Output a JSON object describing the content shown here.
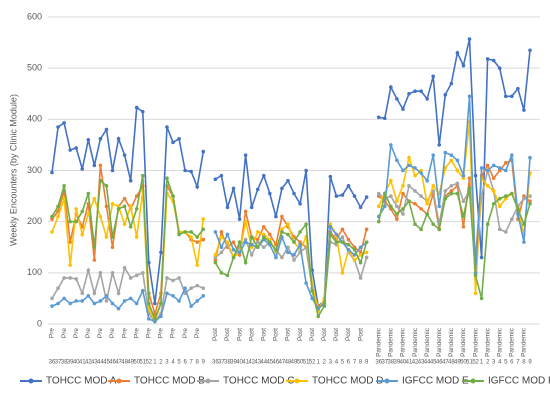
{
  "chart_data": {
    "type": "line",
    "y_label": "Weekly Encounters (by Clinic Module)",
    "categories": [
      36,
      37,
      38,
      39,
      40,
      41,
      42,
      43,
      44,
      45,
      46,
      47,
      48,
      49,
      50,
      51,
      52,
      1,
      2,
      3,
      4,
      5,
      6,
      7,
      8,
      9,
      null,
      36,
      37,
      38,
      39,
      40,
      41,
      42,
      43,
      44,
      45,
      46,
      47,
      48,
      49,
      50,
      51,
      52,
      1,
      2,
      3,
      4,
      5,
      6,
      7,
      8,
      9,
      null,
      36,
      37,
      38,
      39,
      40,
      41,
      42,
      43,
      44,
      45,
      46,
      47,
      48,
      49,
      50,
      51,
      52,
      1,
      2,
      3,
      4,
      5,
      6,
      7,
      8,
      9
    ],
    "category_periods": [
      "Pre",
      null,
      "Pre",
      null,
      "Pre",
      null,
      "Pre",
      null,
      "Pre",
      null,
      "Pre",
      null,
      "Pre",
      null,
      "Pre",
      null,
      "Pre",
      null,
      "Pre",
      null,
      "Pre",
      null,
      "Pre",
      null,
      "Pre",
      null,
      null,
      "Post",
      null,
      "Post",
      null,
      "Post",
      null,
      "Post",
      null,
      "Post",
      null,
      "Post",
      null,
      "Post",
      null,
      "Post",
      null,
      "Post",
      null,
      "Post",
      null,
      "Post",
      null,
      "Post",
      null,
      "Post",
      null,
      null,
      "Pandemic",
      null,
      "Pandemic",
      null,
      "Pandemic",
      null,
      "Pandemic",
      null,
      "Pandemic",
      null,
      "Pandemic",
      null,
      "Pandemic",
      null,
      "Pandemic",
      null,
      "Pandemic",
      null,
      "Pandemic",
      null,
      "Pandemic",
      null,
      "Pandemic",
      null,
      "Pandemic",
      null
    ],
    "ylim": [
      0,
      600
    ],
    "yticks": [
      0,
      100,
      200,
      300,
      400,
      500,
      600
    ],
    "grid": true,
    "legend": "bottom",
    "series": [
      {
        "name": "TOHCC MOD A",
        "color": "#4472c4",
        "values": [
          296,
          385,
          393,
          340,
          344,
          303,
          360,
          310,
          362,
          380,
          300,
          362,
          330,
          280,
          423,
          415,
          120,
          40,
          140,
          385,
          355,
          362,
          300,
          298,
          268,
          337,
          null,
          283,
          290,
          228,
          265,
          205,
          330,
          228,
          263,
          290,
          255,
          210,
          265,
          280,
          255,
          235,
          300,
          105,
          35,
          45,
          288,
          250,
          252,
          270,
          250,
          228,
          248,
          null,
          404,
          402,
          463,
          440,
          420,
          450,
          455,
          455,
          440,
          484,
          350,
          448,
          470,
          530,
          505,
          557,
          290,
          130,
          518,
          515,
          500,
          445,
          445,
          460,
          418,
          535
        ]
      },
      {
        "name": "TOHCC MOD B",
        "color": "#ed7d31",
        "values": [
          205,
          220,
          260,
          160,
          215,
          190,
          235,
          125,
          310,
          230,
          150,
          230,
          245,
          225,
          250,
          270,
          60,
          20,
          60,
          270,
          250,
          180,
          180,
          165,
          160,
          165,
          null,
          125,
          180,
          150,
          160,
          135,
          220,
          170,
          165,
          190,
          175,
          155,
          210,
          190,
          170,
          160,
          150,
          70,
          35,
          40,
          180,
          165,
          185,
          165,
          150,
          140,
          185,
          null,
          250,
          240,
          225,
          205,
          255,
          240,
          235,
          225,
          215,
          255,
          185,
          250,
          260,
          270,
          190,
          285,
          125,
          290,
          310,
          285,
          300,
          315,
          320,
          205,
          250,
          240
        ]
      },
      {
        "name": "TOHCC MOD C",
        "color": "#a5a5a5",
        "values": [
          50,
          70,
          90,
          90,
          88,
          60,
          105,
          60,
          100,
          45,
          100,
          60,
          110,
          90,
          95,
          100,
          20,
          5,
          20,
          90,
          85,
          90,
          60,
          70,
          75,
          70,
          null,
          130,
          140,
          155,
          130,
          150,
          165,
          135,
          160,
          150,
          160,
          145,
          130,
          150,
          125,
          140,
          150,
          70,
          30,
          40,
          160,
          155,
          170,
          140,
          125,
          90,
          130,
          null,
          255,
          245,
          250,
          230,
          215,
          270,
          260,
          250,
          240,
          260,
          195,
          260,
          270,
          275,
          240,
          260,
          110,
          250,
          300,
          260,
          185,
          180,
          205,
          230,
          245,
          250
        ]
      },
      {
        "name": "TOHCC MOD D",
        "color": "#ffc000",
        "values": [
          180,
          210,
          245,
          115,
          225,
          175,
          215,
          245,
          210,
          170,
          235,
          230,
          195,
          230,
          170,
          260,
          30,
          5,
          40,
          255,
          240,
          180,
          180,
          170,
          115,
          205,
          null,
          135,
          170,
          160,
          130,
          140,
          200,
          150,
          180,
          175,
          165,
          140,
          185,
          195,
          160,
          145,
          170,
          80,
          25,
          50,
          195,
          175,
          100,
          145,
          125,
          135,
          140,
          null,
          230,
          255,
          280,
          240,
          270,
          325,
          290,
          300,
          235,
          270,
          255,
          305,
          320,
          300,
          285,
          395,
          60,
          285,
          270,
          260,
          230,
          245,
          255,
          225,
          175,
          295
        ]
      },
      {
        "name": "IGFCC MOD E",
        "color": "#5b9bd5",
        "values": [
          35,
          40,
          50,
          40,
          45,
          45,
          55,
          40,
          45,
          55,
          40,
          30,
          45,
          50,
          40,
          65,
          10,
          5,
          15,
          60,
          55,
          45,
          70,
          35,
          45,
          55,
          null,
          180,
          150,
          175,
          145,
          140,
          160,
          155,
          150,
          165,
          155,
          130,
          170,
          140,
          135,
          155,
          80,
          50,
          30,
          40,
          190,
          175,
          160,
          145,
          135,
          150,
          160,
          null,
          210,
          230,
          350,
          320,
          300,
          310,
          305,
          295,
          280,
          330,
          230,
          335,
          330,
          320,
          290,
          445,
          100,
          305,
          300,
          310,
          305,
          300,
          330,
          215,
          160,
          325
        ]
      },
      {
        "name": "IGFCC MOD F",
        "color": "#70ad47",
        "values": [
          210,
          230,
          270,
          200,
          200,
          220,
          255,
          150,
          280,
          270,
          170,
          225,
          230,
          190,
          225,
          290,
          40,
          10,
          40,
          285,
          250,
          175,
          180,
          180,
          170,
          185,
          null,
          120,
          100,
          95,
          130,
          160,
          120,
          170,
          150,
          170,
          160,
          145,
          180,
          175,
          160,
          180,
          195,
          65,
          15,
          35,
          175,
          160,
          160,
          155,
          145,
          120,
          160,
          null,
          200,
          255,
          230,
          215,
          225,
          240,
          195,
          185,
          215,
          195,
          185,
          245,
          255,
          255,
          210,
          265,
          95,
          50,
          195,
          235,
          245,
          250,
          255,
          225,
          195,
          235
        ]
      }
    ]
  }
}
